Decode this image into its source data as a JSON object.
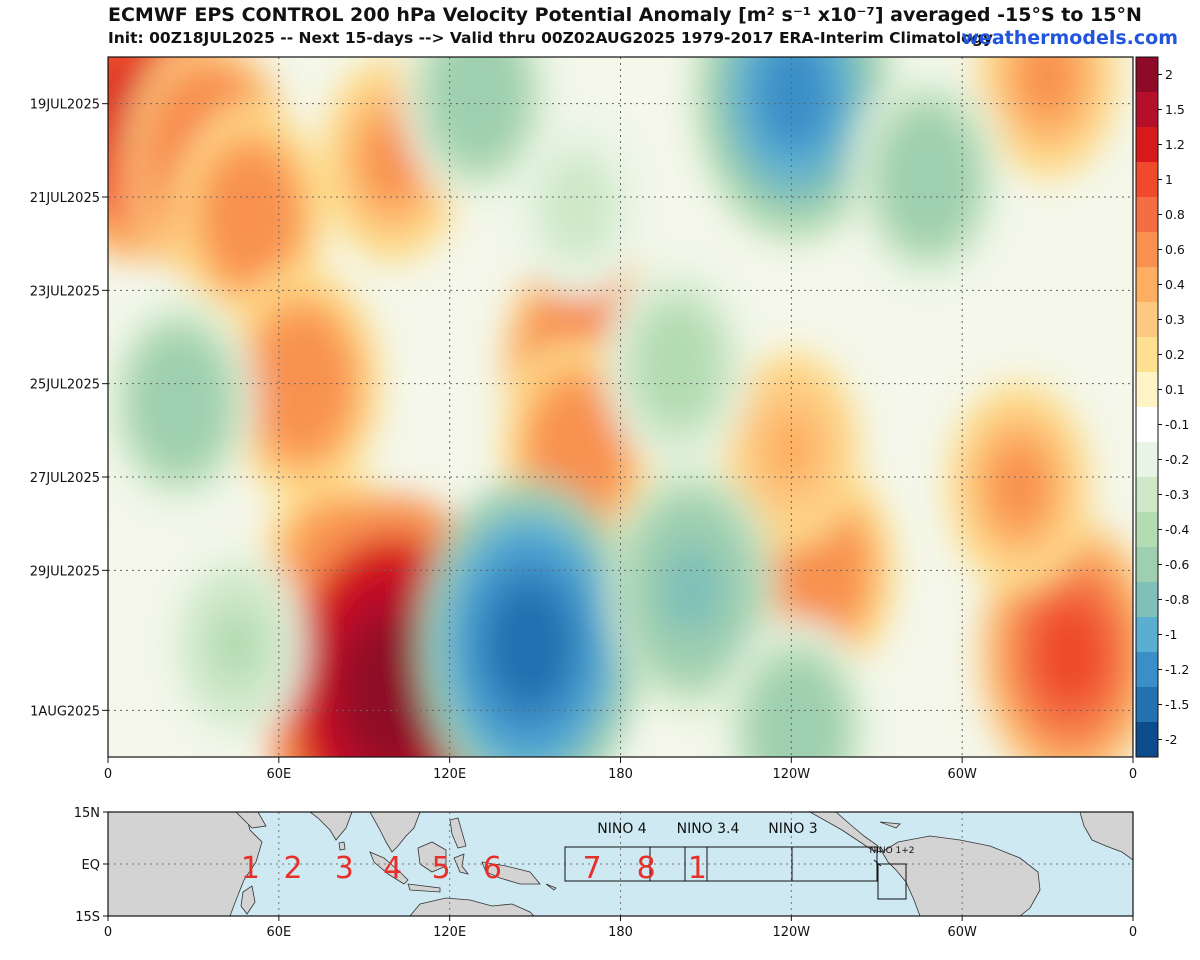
{
  "header": {
    "title": "ECMWF EPS CONTROL 200 hPa Velocity Potential Anomaly [m² s⁻¹ x10⁻⁷] averaged -15°S to 15°N",
    "subtitle": "Init: 00Z18JUL2025 -- Next 15-days --> Valid thru 00Z02AUG2025 1979-2017 ERA-Interim Climatology",
    "brand": "weathermodels.com"
  },
  "chart_data": {
    "type": "heatmap",
    "title": "ECMWF EPS CONTROL 200 hPa Velocity Potential Anomaly [m² s⁻¹ x10⁻⁷] averaged -15°S to 15°N",
    "x_axis": {
      "ticks": [
        "0",
        "60E",
        "120E",
        "180",
        "120W",
        "60W",
        "0"
      ],
      "range": [
        0,
        360
      ]
    },
    "y_axis": {
      "ticks": [
        "19JUL2025",
        "21JUL2025",
        "23JUL2025",
        "25JUL2025",
        "27JUL2025",
        "29JUL2025",
        "1AUG2025"
      ],
      "range": [
        "18JUL2025",
        "02AUG2025"
      ]
    },
    "colorbar": {
      "labels": [
        "2",
        "1.5",
        "1.2",
        "1",
        "0.8",
        "0.6",
        "0.4",
        "0.3",
        "0.2",
        "0.1",
        "-0.1",
        "-0.2",
        "-0.3",
        "-0.4",
        "-0.6",
        "-0.8",
        "-1",
        "-1.2",
        "-1.5",
        "-2"
      ],
      "colors": [
        "#8e0a26",
        "#b50f2b",
        "#d7191c",
        "#ee4a2b",
        "#f46d43",
        "#f89150",
        "#fdae61",
        "#fdc980",
        "#fee090",
        "#fff4c6",
        "#ffffff",
        "#e8f4e4",
        "#cfe8c8",
        "#b4dcb2",
        "#9ecfb0",
        "#7fc0b8",
        "#5aaed2",
        "#3a8fc8",
        "#2471b0",
        "#0d4c8c"
      ]
    },
    "features": [
      {
        "lon": 10,
        "date_index": 1.2,
        "value": 1.2
      },
      {
        "lon": 35,
        "date_index": 2.2,
        "value": 0.8
      },
      {
        "lon": 50,
        "date_index": 3.4,
        "value": 0.6
      },
      {
        "lon": 100,
        "date_index": 2.2,
        "value": 0.5
      },
      {
        "lon": 68,
        "date_index": 7,
        "value": 0.7
      },
      {
        "lon": 80,
        "date_index": 11.2,
        "value": 0.6
      },
      {
        "lon": 100,
        "date_index": 13.6,
        "value": 2.0
      },
      {
        "lon": 168,
        "date_index": 6.6,
        "value": 0.8
      },
      {
        "lon": 165,
        "date_index": 8.4,
        "value": 0.6
      },
      {
        "lon": 250,
        "date_index": 11,
        "value": 0.6
      },
      {
        "lon": 240,
        "date_index": 8.4,
        "value": 0.4
      },
      {
        "lon": 338,
        "date_index": 12.8,
        "value": 1.0
      },
      {
        "lon": 320,
        "date_index": 9.2,
        "value": 0.5
      },
      {
        "lon": 330,
        "date_index": 0.4,
        "value": 0.5
      },
      {
        "lon": 130,
        "date_index": 0.8,
        "value": -0.6
      },
      {
        "lon": 241,
        "date_index": 0.8,
        "value": -1.2
      },
      {
        "lon": 288,
        "date_index": 2.6,
        "value": -0.6
      },
      {
        "lon": 165,
        "date_index": 3.2,
        "value": -0.3
      },
      {
        "lon": 25,
        "date_index": 7.4,
        "value": -0.6
      },
      {
        "lon": 200,
        "date_index": 6.6,
        "value": -0.5
      },
      {
        "lon": 148,
        "date_index": 12.6,
        "value": -1.5
      },
      {
        "lon": 205,
        "date_index": 11.4,
        "value": -0.8
      },
      {
        "lon": 242,
        "date_index": 14.4,
        "value": -0.6
      },
      {
        "lon": 45,
        "date_index": 12.6,
        "value": -0.4
      }
    ]
  },
  "map": {
    "lat_ticks": [
      "15N",
      "EQ",
      "15S"
    ],
    "lon_ticks": [
      "0",
      "60E",
      "120E",
      "180",
      "120W",
      "60W",
      "0"
    ],
    "mjo_phases": [
      "1",
      "2",
      "3",
      "4",
      "5",
      "6",
      "7",
      "8",
      "1"
    ],
    "nino_labels": [
      "NINO 4",
      "NINO 3.4",
      "NINO 3",
      "NINO 1+2"
    ]
  }
}
